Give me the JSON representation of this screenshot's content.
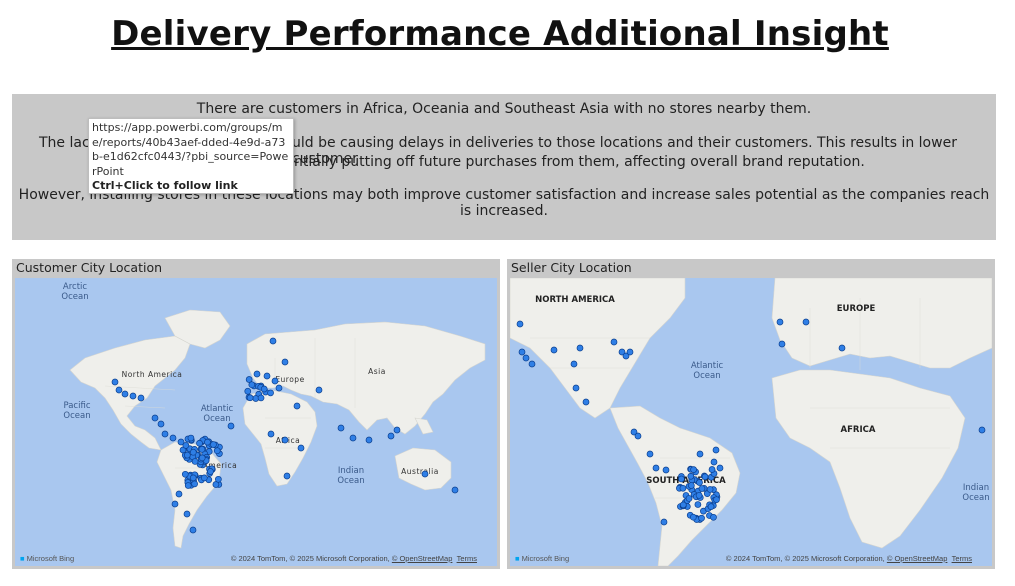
{
  "page": {
    "title": "Delivery Performance Additional Insight"
  },
  "insight": {
    "line1": "There are customers in Africa, Oceania and Southeast Asia with no stores nearby them.",
    "line2_left": "The lack",
    "line2_right": "uld be causing delays in deliveries to those locations and their customers. This results in lower customer",
    "line3_right": "ntially putting off future purchases from them, affecting overall brand reputation.",
    "line4_left": "However, installing stores in these locations may both improve customer satisfaction and increase sales potential as the companies reach is increased."
  },
  "tooltip": {
    "url": "https://app.powerbi.com/groups/me/reports/40b43aef-dded-4e9d-a73b-e1d62cfc0443/?pbi_source=PowerPoint",
    "hint": "Ctrl+Click to follow link"
  },
  "customer_map": {
    "title": "Customer City Location",
    "labels": {
      "arctic": "Arctic",
      "arctic2": "Ocean",
      "north_america": "North America",
      "pacific": "Pacific",
      "pacific2": "Ocean",
      "atlantic": "Atlantic",
      "atlantic2": "Ocean",
      "europe": "Europe",
      "asia": "Asia",
      "africa": "Africa",
      "south_america": "America",
      "indian": "Indian",
      "indian2": "Ocean",
      "australia": "Australia"
    },
    "bing": "Microsoft Bing",
    "copyright": "© 2024 TomTom, © 2025 Microsoft Corporation,",
    "osm": "© OpenStreetMap",
    "terms": "Terms"
  },
  "seller_map": {
    "title": "Seller City Location",
    "labels": {
      "north_america": "NORTH AMERICA",
      "europe": "EUROPE",
      "atlantic": "Atlantic",
      "atlantic2": "Ocean",
      "africa": "AFRICA",
      "south_america": "SOUTH AMERICA",
      "indian": "Indian",
      "indian2": "Ocean"
    },
    "bing": "Microsoft Bing",
    "copyright": "© 2024 TomTom, © 2025 Microsoft Corporation,",
    "osm": "© OpenStreetMap",
    "terms": "Terms"
  },
  "colors": {
    "ocean": "#a9c7ef",
    "land": "#efefeb",
    "dot_fill": "#2f7fe6",
    "dot_stroke": "#0b3f8f",
    "panel_bg": "#c8c8c8"
  }
}
